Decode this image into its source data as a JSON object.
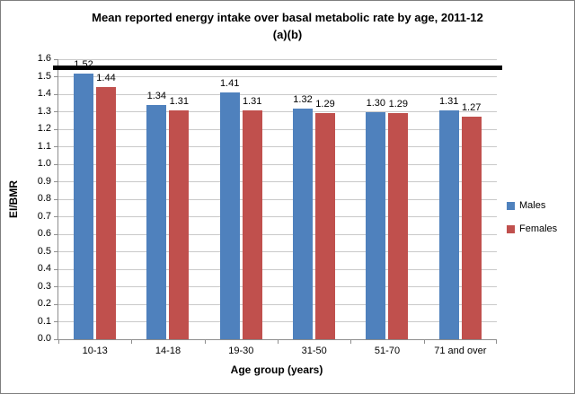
{
  "chart_data": {
    "type": "bar",
    "title": "Mean reported energy intake over basal metabolic rate by age, 2011-12 (a)(b)",
    "title_lines": [
      "Mean reported energy intake over basal metabolic rate by age, 2011-12",
      "(a)(b)"
    ],
    "categories": [
      "10-13",
      "14-18",
      "19-30",
      "31-50",
      "51-70",
      "71 and over"
    ],
    "series": [
      {
        "name": "Males",
        "color": "#4F81BD",
        "values": [
          1.52,
          1.34,
          1.41,
          1.32,
          1.3,
          1.31
        ]
      },
      {
        "name": "Females",
        "color": "#C0504D",
        "values": [
          1.44,
          1.31,
          1.31,
          1.29,
          1.29,
          1.27
        ]
      }
    ],
    "xlabel": "Age group (years)",
    "ylabel": "EI/BMR",
    "ylim": [
      0,
      1.6
    ],
    "ytick_step": 0.1,
    "grid": true,
    "legend_position": "right",
    "reference_line": {
      "value": 1.55,
      "color": "#000000"
    },
    "data_label_decimals": 2
  },
  "colors": {
    "gridline": "#c9c9c9",
    "axis": "#8e8e8e",
    "border": "#7f7f7f",
    "text": "#000000"
  }
}
